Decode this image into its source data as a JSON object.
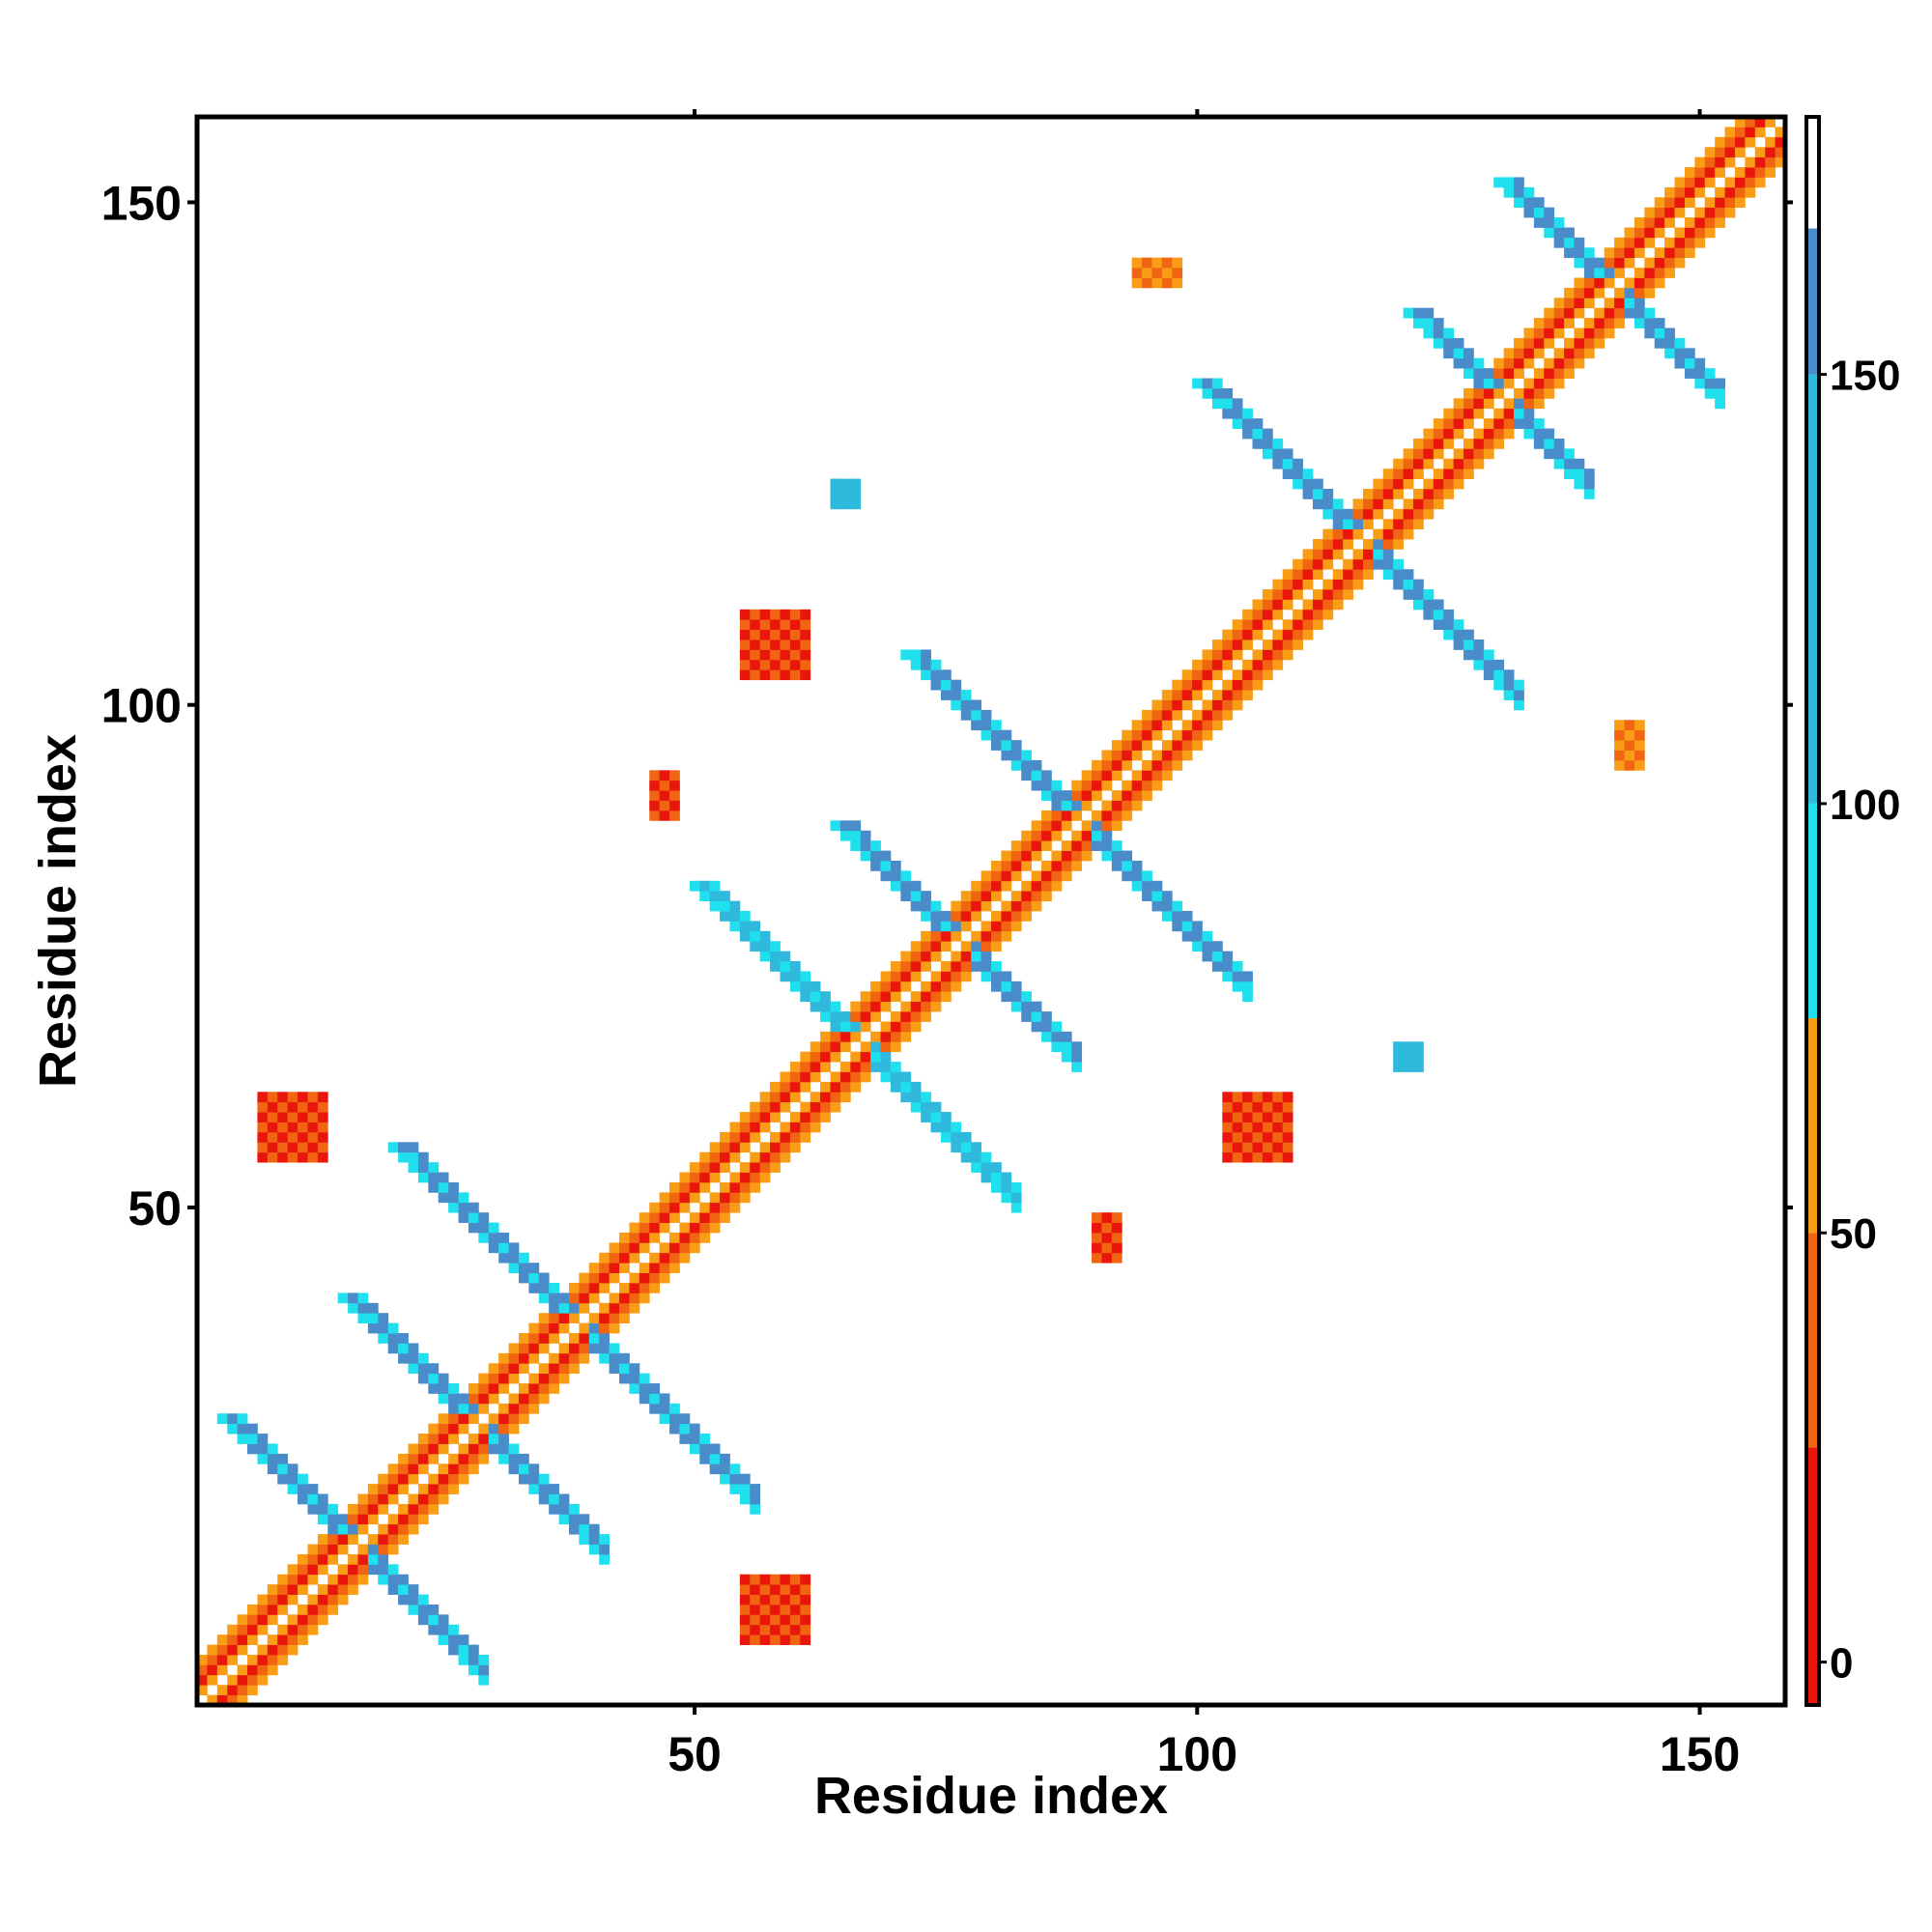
{
  "chart_data": {
    "type": "heatmap",
    "title": "",
    "xlabel": "Residue index",
    "ylabel": "Residue index",
    "xlim": [
      0.5,
      158.5
    ],
    "ylim": [
      0.5,
      158.5
    ],
    "x_ticks": [
      50,
      100,
      150
    ],
    "y_ticks": [
      50,
      100,
      150
    ],
    "colorbar": {
      "range": [
        -5,
        180
      ],
      "ticks": [
        0,
        50,
        100,
        150
      ],
      "bands": [
        {
          "from": -5,
          "to": 25,
          "color": "#e8160b"
        },
        {
          "from": 25,
          "to": 50,
          "color": "#f06412"
        },
        {
          "from": 50,
          "to": 75,
          "color": "#f99d17"
        },
        {
          "from": 75,
          "to": 100,
          "color": "#21e0ee"
        },
        {
          "from": 100,
          "to": 150,
          "color": "#2fb9dc"
        },
        {
          "from": 150,
          "to": 167,
          "color": "#4a8cc9"
        },
        {
          "from": 167,
          "to": 180,
          "color": "#ffffff"
        }
      ]
    },
    "n_residues": 158,
    "features": [
      {
        "kind": "diagonal",
        "from": 1,
        "to": 158
      },
      {
        "kind": "antiparallel_strip",
        "center": [
          16,
          16
        ],
        "length": 13,
        "width": 3,
        "value": 150
      },
      {
        "kind": "antiparallel_strip",
        "center": [
          28,
          28
        ],
        "length": 13,
        "width": 3,
        "value": 155
      },
      {
        "kind": "antiparallel_strip",
        "center": [
          38,
          38
        ],
        "length": 18,
        "width": 3,
        "value": 150
      },
      {
        "kind": "antiparallel_strip",
        "center": [
          66,
          66
        ],
        "length": 16,
        "width": 3,
        "value": 145
      },
      {
        "kind": "antiparallel_strip",
        "center": [
          76,
          76
        ],
        "length": 12,
        "width": 3,
        "value": 150
      },
      {
        "kind": "antiparallel_strip",
        "center": [
          88,
          88
        ],
        "length": 17,
        "width": 3,
        "value": 155
      },
      {
        "kind": "antiparallel_strip",
        "center": [
          116,
          116
        ],
        "length": 16,
        "width": 3,
        "value": 150
      },
      {
        "kind": "antiparallel_strip",
        "center": [
          130,
          130
        ],
        "length": 9,
        "width": 3,
        "value": 155
      },
      {
        "kind": "antiparallel_strip",
        "center": [
          141,
          141
        ],
        "length": 11,
        "width": 3,
        "value": 150
      },
      {
        "kind": "blob",
        "x": 58,
        "y": 10,
        "rx": 3,
        "ry": 3,
        "value": 10
      },
      {
        "kind": "blob",
        "x": 10,
        "y": 58,
        "rx": 3,
        "ry": 3,
        "value": 10
      },
      {
        "kind": "blob",
        "x": 58,
        "y": 106,
        "rx": 3,
        "ry": 3,
        "value": 10
      },
      {
        "kind": "blob",
        "x": 106,
        "y": 58,
        "rx": 3,
        "ry": 3,
        "value": 10
      },
      {
        "kind": "blob",
        "x": 91,
        "y": 47,
        "rx": 1,
        "ry": 2,
        "value": 15
      },
      {
        "kind": "blob",
        "x": 47,
        "y": 91,
        "rx": 1,
        "ry": 2,
        "value": 15
      },
      {
        "kind": "blob",
        "x": 143,
        "y": 96,
        "rx": 1,
        "ry": 2,
        "value": 40
      },
      {
        "kind": "blob",
        "x": 96,
        "y": 143,
        "rx": 2,
        "ry": 1,
        "value": 40
      },
      {
        "kind": "blob",
        "x": 121,
        "y": 65,
        "rx": 1,
        "ry": 1,
        "value": 120
      },
      {
        "kind": "blob",
        "x": 65,
        "y": 121,
        "rx": 1,
        "ry": 1,
        "value": 120
      }
    ]
  }
}
